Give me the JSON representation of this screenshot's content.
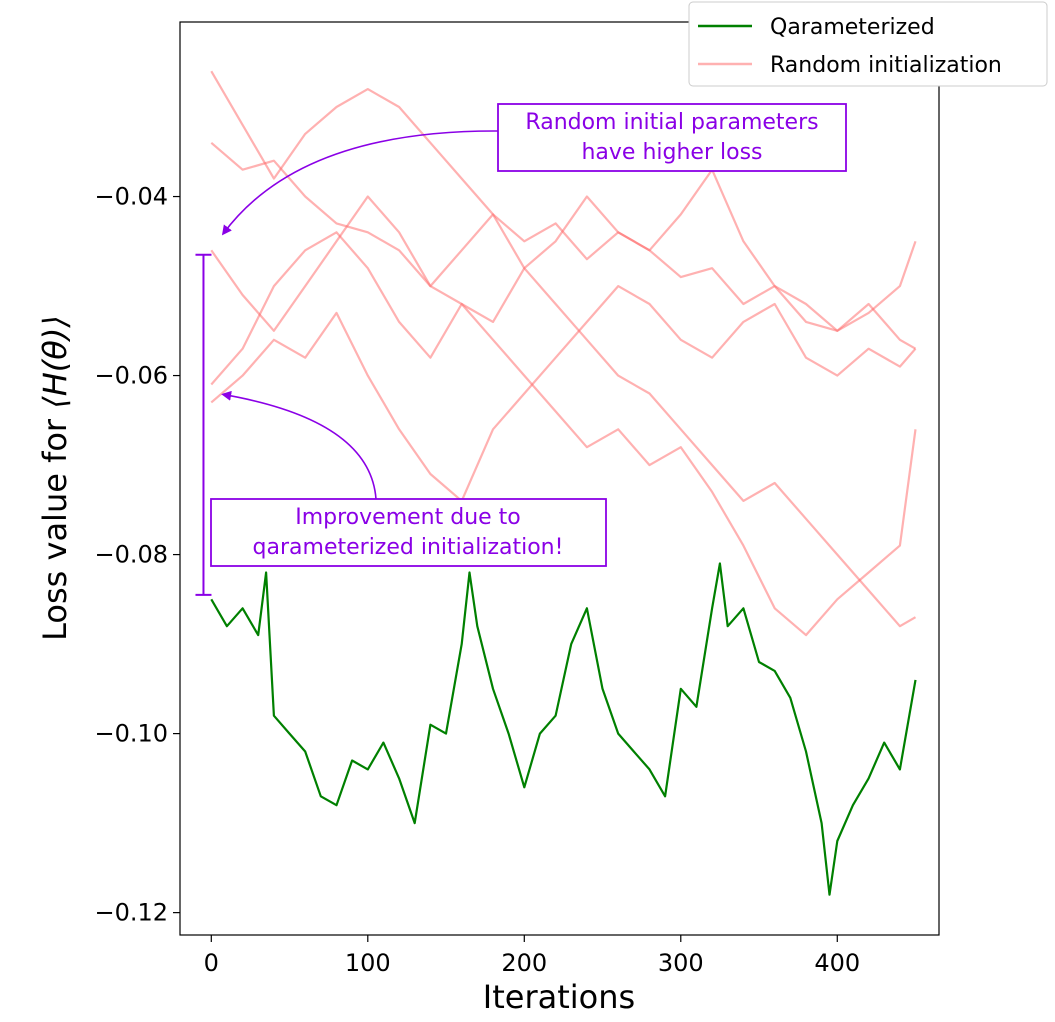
{
  "chart_data": {
    "type": "line",
    "xlabel": "Iterations",
    "ylabel_prefix": "Loss value for ",
    "ylabel_math": "⟨H(θ)⟩",
    "xlim": [
      -20,
      465
    ],
    "ylim": [
      -0.1225,
      -0.0205
    ],
    "x_ticks": [
      0,
      100,
      200,
      300,
      400
    ],
    "x_tick_labels": [
      "0",
      "100",
      "200",
      "300",
      "400"
    ],
    "y_ticks": [
      -0.04,
      -0.06,
      -0.08,
      -0.1,
      -0.12
    ],
    "y_tick_labels": [
      "−0.04",
      "−0.06",
      "−0.08",
      "−0.10",
      "−0.12"
    ],
    "legend": {
      "placement": "upper right, outside plot",
      "entries": [
        "Qarameterized",
        "Random initialization"
      ]
    },
    "colors": {
      "qarameterized": "#008000",
      "random": "#ff6464",
      "annotation": "#8a00e6"
    },
    "series": [
      {
        "name": "Qarameterized",
        "x": [
          0,
          10,
          20,
          30,
          35,
          40,
          50,
          60,
          70,
          80,
          90,
          100,
          110,
          120,
          130,
          140,
          150,
          160,
          165,
          170,
          180,
          190,
          200,
          210,
          220,
          230,
          240,
          250,
          260,
          270,
          280,
          290,
          300,
          310,
          320,
          325,
          330,
          340,
          350,
          360,
          370,
          380,
          390,
          395,
          400,
          410,
          420,
          430,
          440,
          450
        ],
        "values": [
          -0.085,
          -0.088,
          -0.086,
          -0.089,
          -0.082,
          -0.098,
          -0.1,
          -0.102,
          -0.107,
          -0.108,
          -0.103,
          -0.104,
          -0.101,
          -0.105,
          -0.11,
          -0.099,
          -0.1,
          -0.09,
          -0.082,
          -0.088,
          -0.095,
          -0.1,
          -0.106,
          -0.1,
          -0.098,
          -0.09,
          -0.086,
          -0.095,
          -0.1,
          -0.102,
          -0.104,
          -0.107,
          -0.095,
          -0.097,
          -0.086,
          -0.081,
          -0.088,
          -0.086,
          -0.092,
          -0.093,
          -0.096,
          -0.102,
          -0.11,
          -0.118,
          -0.112,
          -0.108,
          -0.105,
          -0.101,
          -0.104,
          -0.094
        ]
      },
      {
        "name": "Random initialization",
        "x": [
          0,
          20,
          40,
          60,
          80,
          100,
          120,
          140,
          160,
          180,
          200,
          220,
          240,
          260,
          280,
          300,
          320,
          340,
          360,
          380,
          400,
          420,
          440,
          450
        ],
        "values": [
          -0.026,
          -0.032,
          -0.038,
          -0.033,
          -0.03,
          -0.028,
          -0.03,
          -0.034,
          -0.038,
          -0.042,
          -0.045,
          -0.043,
          -0.047,
          -0.044,
          -0.046,
          -0.049,
          -0.048,
          -0.052,
          -0.05,
          -0.054,
          -0.055,
          -0.052,
          -0.056,
          -0.057
        ]
      },
      {
        "x": [
          0,
          20,
          40,
          60,
          80,
          100,
          120,
          140,
          160,
          180,
          200,
          220,
          240,
          260,
          280,
          300,
          320,
          340,
          360,
          380,
          400,
          420,
          440,
          450
        ],
        "values": [
          -0.034,
          -0.037,
          -0.036,
          -0.04,
          -0.043,
          -0.044,
          -0.046,
          -0.05,
          -0.052,
          -0.054,
          -0.048,
          -0.045,
          -0.04,
          -0.044,
          -0.046,
          -0.042,
          -0.037,
          -0.045,
          -0.05,
          -0.052,
          -0.055,
          -0.053,
          -0.05,
          -0.045
        ]
      },
      {
        "x": [
          0,
          20,
          40,
          60,
          80,
          100,
          120,
          140,
          160,
          180,
          200,
          220,
          240,
          260,
          280,
          300,
          320,
          340,
          360,
          380,
          400,
          420,
          440,
          450
        ],
        "values": [
          -0.046,
          -0.051,
          -0.055,
          -0.05,
          -0.045,
          -0.04,
          -0.044,
          -0.05,
          -0.046,
          -0.042,
          -0.048,
          -0.052,
          -0.056,
          -0.06,
          -0.062,
          -0.066,
          -0.07,
          -0.074,
          -0.072,
          -0.076,
          -0.08,
          -0.084,
          -0.088,
          -0.087
        ]
      },
      {
        "x": [
          0,
          20,
          40,
          60,
          80,
          100,
          120,
          140,
          160,
          180,
          200,
          220,
          240,
          260,
          280,
          300,
          320,
          340,
          360,
          380,
          400,
          420,
          440,
          450
        ],
        "values": [
          -0.061,
          -0.057,
          -0.05,
          -0.046,
          -0.044,
          -0.048,
          -0.054,
          -0.058,
          -0.052,
          -0.056,
          -0.06,
          -0.064,
          -0.068,
          -0.066,
          -0.07,
          -0.068,
          -0.073,
          -0.079,
          -0.086,
          -0.089,
          -0.085,
          -0.082,
          -0.079,
          -0.066
        ]
      },
      {
        "x": [
          0,
          20,
          40,
          60,
          80,
          100,
          120,
          140,
          160,
          180,
          200,
          220,
          240,
          260,
          280,
          300,
          320,
          340,
          360,
          380,
          400,
          420,
          440,
          450
        ],
        "values": [
          -0.063,
          -0.06,
          -0.056,
          -0.058,
          -0.053,
          -0.06,
          -0.066,
          -0.071,
          -0.074,
          -0.066,
          -0.062,
          -0.058,
          -0.054,
          -0.05,
          -0.052,
          -0.056,
          -0.058,
          -0.054,
          -0.052,
          -0.058,
          -0.06,
          -0.057,
          -0.059,
          -0.057
        ]
      }
    ],
    "annotations": [
      {
        "text_lines": [
          "Random initial parameters",
          "have higher loss"
        ],
        "points_to": [
          5,
          -0.0445
        ]
      },
      {
        "text_lines": [
          "Improvement due to",
          "qarameterized initialization!"
        ],
        "points_to": [
          5,
          -0.062
        ]
      }
    ],
    "bracket": {
      "x": -5,
      "y_top": -0.0465,
      "y_bottom": -0.0845
    }
  }
}
